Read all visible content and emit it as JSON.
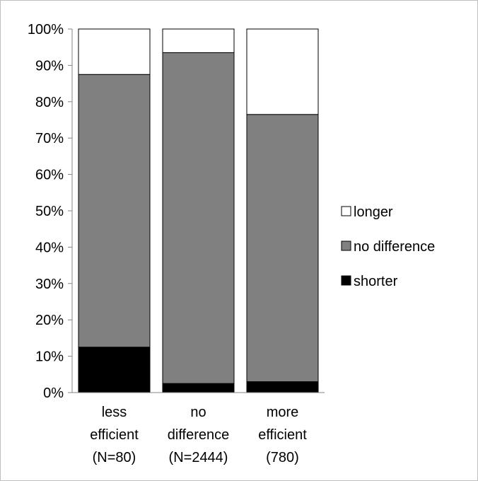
{
  "chart_data": {
    "type": "bar",
    "stacked": true,
    "percent": true,
    "title": "",
    "xlabel": "",
    "ylabel": "",
    "ylim": [
      0,
      100
    ],
    "yticks": [
      "0%",
      "10%",
      "20%",
      "30%",
      "40%",
      "50%",
      "60%",
      "70%",
      "80%",
      "90%",
      "100%"
    ],
    "categories": [
      [
        "less",
        "efficient",
        "(N=80)"
      ],
      [
        "no",
        "difference",
        "(N=2444)"
      ],
      [
        "more",
        "efficient",
        "(780)"
      ]
    ],
    "series": [
      {
        "name": "shorter",
        "values": [
          12.5,
          2.5,
          3.0
        ],
        "color": "#000000"
      },
      {
        "name": "no difference",
        "values": [
          75.0,
          91.0,
          73.5
        ],
        "color": "#808080"
      },
      {
        "name": "longer",
        "values": [
          12.5,
          6.5,
          23.5
        ],
        "color": "#ffffff"
      }
    ],
    "legend": {
      "placement": "right",
      "order": [
        "longer",
        "no difference",
        "shorter"
      ]
    },
    "grid": false
  }
}
